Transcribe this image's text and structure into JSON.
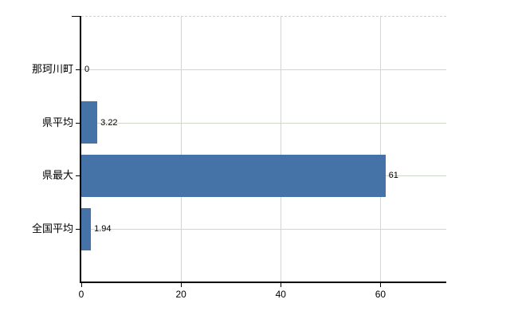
{
  "chart_data": {
    "type": "bar",
    "orientation": "horizontal",
    "title": "",
    "xlabel": "",
    "ylabel": "",
    "categories": [
      "那珂川町",
      "県平均",
      "県最大",
      "全国平均"
    ],
    "values": [
      0,
      3.22,
      61,
      1.94
    ],
    "value_labels": [
      "0",
      "3.22",
      "61",
      "1.94"
    ],
    "x_ticks": [
      0,
      20,
      40,
      60
    ],
    "x_tick_labels": [
      "0",
      "20",
      "40",
      "60"
    ],
    "xlim": [
      0,
      73.2
    ],
    "grid": true,
    "legend": "none"
  },
  "colors": {
    "bar": "#4572a7",
    "h_gridline": "#cfd7c9",
    "v_gridline": "#d4d4d4",
    "top_border": "#d3d0d3",
    "axis": "#000000",
    "text": "#000000",
    "background": "#ffffff"
  }
}
